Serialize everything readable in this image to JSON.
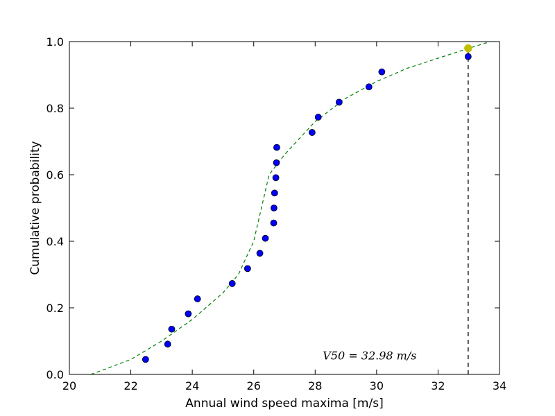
{
  "chart_data": {
    "type": "scatter",
    "xlabel": "Annual wind speed maxima [m/s]",
    "ylabel": "Cumulative probability",
    "xlim": [
      20,
      34
    ],
    "ylim": [
      0.0,
      1.0
    ],
    "xticks": [
      20,
      22,
      24,
      26,
      28,
      30,
      32,
      34
    ],
    "xtick_labels": [
      "20",
      "22",
      "24",
      "26",
      "28",
      "30",
      "32",
      "34"
    ],
    "yticks": [
      0.0,
      0.2,
      0.4,
      0.6,
      0.8,
      1.0
    ],
    "ytick_labels": [
      "0.0",
      "0.2",
      "0.4",
      "0.6",
      "0.8",
      "1.0"
    ],
    "grid": false,
    "series": [
      {
        "kind": "points",
        "color": "#0000ff",
        "x": [
          22.48,
          23.2,
          23.33,
          23.87,
          24.17,
          25.3,
          25.8,
          26.2,
          26.38,
          26.65,
          26.66,
          26.68,
          26.72,
          26.74,
          26.75,
          27.9,
          28.1,
          28.78,
          29.75,
          30.17,
          32.98
        ],
        "y": [
          0.045,
          0.091,
          0.136,
          0.182,
          0.227,
          0.273,
          0.318,
          0.364,
          0.409,
          0.455,
          0.5,
          0.545,
          0.591,
          0.636,
          0.682,
          0.727,
          0.773,
          0.818,
          0.864,
          0.909,
          0.955
        ]
      },
      {
        "kind": "fit-curve",
        "color": "#008000",
        "line_style": "dashed",
        "x": [
          20.7,
          21.0,
          22.0,
          23.0,
          24.0,
          25.0,
          25.5,
          26.0,
          26.25,
          26.5,
          27.0,
          28.0,
          29.0,
          30.0,
          31.0,
          32.0,
          33.0,
          33.7
        ],
        "y": [
          0.0,
          0.01,
          0.045,
          0.1,
          0.165,
          0.245,
          0.3,
          0.4,
          0.5,
          0.6,
          0.66,
          0.76,
          0.83,
          0.88,
          0.92,
          0.95,
          0.98,
          1.0
        ]
      },
      {
        "kind": "highlight-point",
        "color": "#bfbf00",
        "x": [
          32.98
        ],
        "y": [
          0.98
        ]
      }
    ],
    "vline": {
      "x": 32.98,
      "y_from": 0.0,
      "y_to": 0.98,
      "color": "#000000",
      "line_style": "dashed"
    },
    "annotation": {
      "text": "V50 = 32.98 m/s",
      "x": 31.3,
      "y": 0.055
    }
  }
}
